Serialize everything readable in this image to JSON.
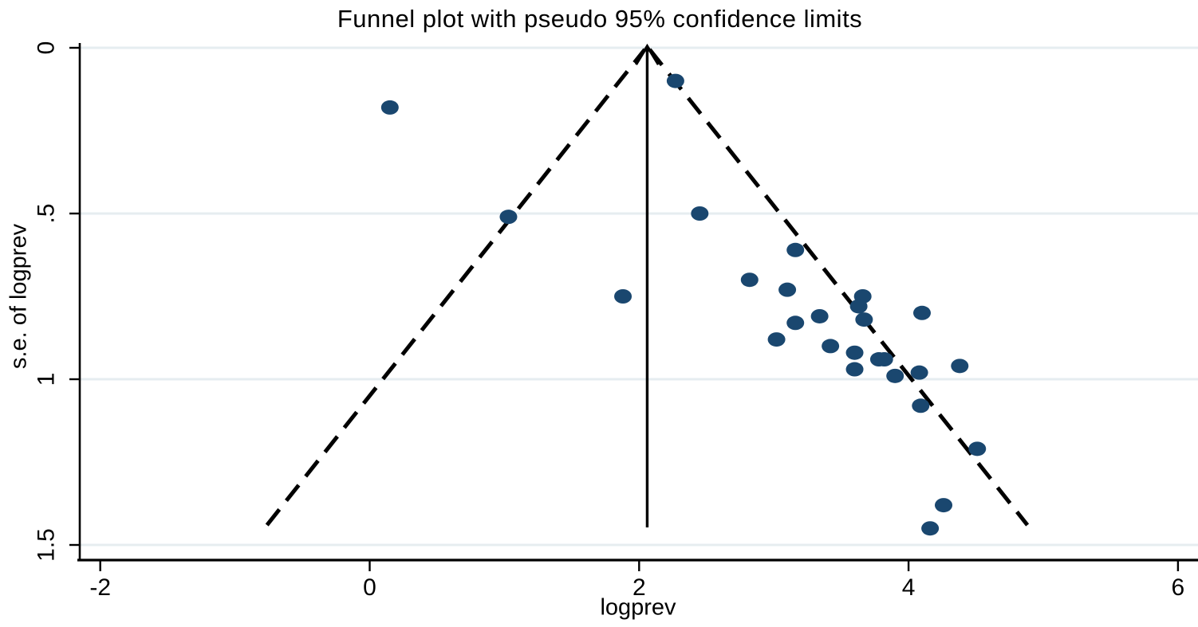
{
  "chart_data": {
    "type": "scatter",
    "title": "Funnel plot with pseudo 95% confidence limits",
    "xlabel": "logprev",
    "ylabel": "s.e. of logprev",
    "x_ticks": [
      -2,
      0,
      2,
      4,
      6
    ],
    "x_tick_labels": [
      "-2",
      "0",
      "2",
      "4",
      "6"
    ],
    "y_ticks": [
      0,
      0.5,
      1,
      1.5
    ],
    "y_tick_labels": [
      "0",
      ".5",
      "1",
      "1.5"
    ],
    "xlim": [
      -2.15,
      6.15
    ],
    "ylim": [
      0,
      1.55
    ],
    "y_axis_reversed": true,
    "grid": true,
    "funnel": {
      "center": 2.06,
      "z": 1.96,
      "se_max": 1.44,
      "boundary_style": "dashed",
      "center_line_style": "solid-arrow-up"
    },
    "points": [
      [
        0.15,
        0.18
      ],
      [
        2.27,
        0.1
      ],
      [
        2.45,
        0.5
      ],
      [
        1.03,
        0.51
      ],
      [
        1.88,
        0.75
      ],
      [
        2.82,
        0.7
      ],
      [
        3.16,
        0.61
      ],
      [
        3.1,
        0.73
      ],
      [
        3.16,
        0.83
      ],
      [
        3.34,
        0.81
      ],
      [
        3.02,
        0.88
      ],
      [
        3.42,
        0.9
      ],
      [
        3.66,
        0.75
      ],
      [
        3.63,
        0.78
      ],
      [
        3.67,
        0.82
      ],
      [
        3.6,
        0.92
      ],
      [
        3.6,
        0.97
      ],
      [
        3.78,
        0.94
      ],
      [
        3.82,
        0.94
      ],
      [
        3.9,
        0.99
      ],
      [
        4.1,
        0.8
      ],
      [
        4.08,
        0.98
      ],
      [
        4.38,
        0.96
      ],
      [
        4.09,
        1.08
      ],
      [
        4.51,
        1.21
      ],
      [
        4.26,
        1.38
      ],
      [
        4.16,
        1.45
      ]
    ],
    "colors": {
      "marker": "#1a476f",
      "gridline": "#e6edf0",
      "axis": "#000000",
      "funnel_line": "#000000",
      "background": "#ffffff"
    }
  }
}
